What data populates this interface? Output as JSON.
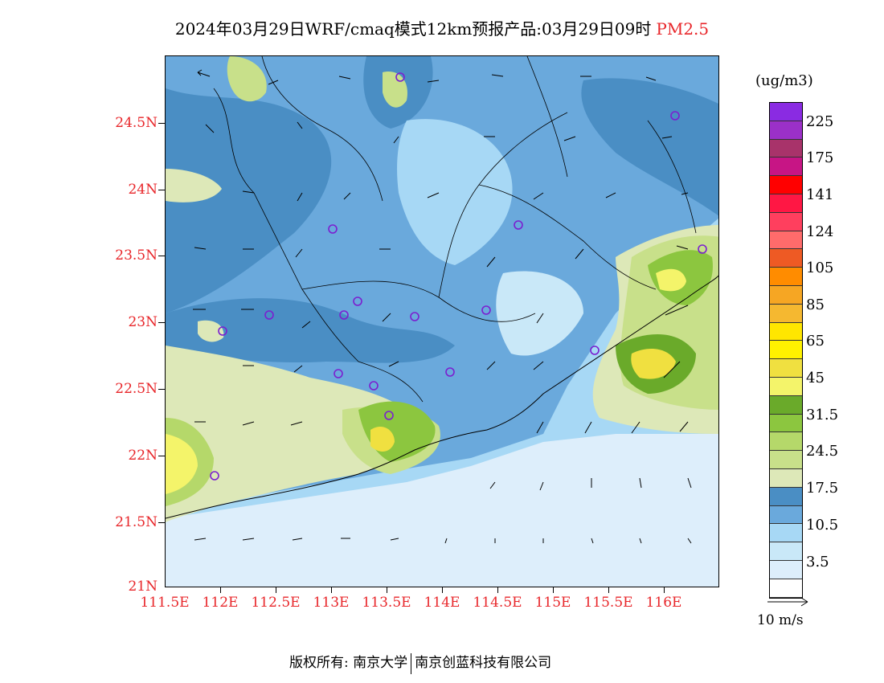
{
  "title": {
    "main": "2024年03月29日WRF/cmaq模式12km预报产品:03月29日09时",
    "species": "PM2.5"
  },
  "map": {
    "lat_ticks": [
      "24.5N",
      "24N",
      "23.5N",
      "23N",
      "22.5N",
      "22N",
      "21.5N",
      "21N"
    ],
    "lon_ticks": [
      "111.5E",
      "112E",
      "112.5E",
      "113E",
      "113.5E",
      "114E",
      "114.5E",
      "115E",
      "115.5E",
      "116E"
    ],
    "lat_range": [
      21,
      25
    ],
    "lon_range": [
      111.5,
      116.5
    ]
  },
  "legend": {
    "unit": "(ug/m3)",
    "labels": [
      "225",
      "175",
      "141",
      "124",
      "105",
      "85",
      "65",
      "45",
      "31.5",
      "24.5",
      "17.5",
      "10.5",
      "3.5"
    ],
    "colors": [
      "#8a2be2",
      "#9b30c8",
      "#a8336a",
      "#c71585",
      "#ff0000",
      "#ff1744",
      "#ff3f5e",
      "#ff6b6b",
      "#ee5a24",
      "#ff8c00",
      "#f6a623",
      "#f5b830",
      "#ffe600",
      "#fff200",
      "#f0e040",
      "#f4f46a",
      "#6aaa2a",
      "#8cc63f",
      "#b5d86a",
      "#c8e08a",
      "#dde8b8",
      "#4a8ec4",
      "#6aa9dc",
      "#a7d8f5",
      "#c9e8f8",
      "#ddeefb",
      "#ffffff"
    ]
  },
  "wind_ref": {
    "label": "10 m/s"
  },
  "footer": {
    "copyright": "版权所有: 南京大学",
    "company": "南京创蓝科技有限公司"
  }
}
